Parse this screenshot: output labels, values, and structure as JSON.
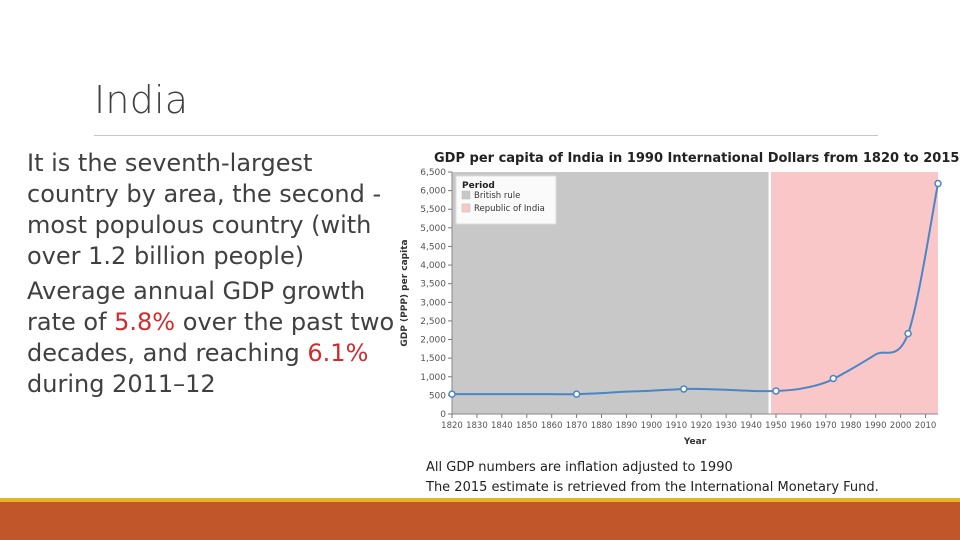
{
  "slide": {
    "title": "India",
    "para1": "It is the seventh-largest country by area, the second -most populous country (with over 1.2 billion people)",
    "para2_a": "Average annual GDP growth rate of ",
    "para2_hl1": "5.8%",
    "para2_b": " over the past two decades, and reaching ",
    "para2_hl2": "6.1%",
    "para2_c": " during 2011–12",
    "caption1": "All GDP numbers are inflation adjusted to 1990",
    "caption2": "The 2015 estimate is retrieved from the International Monetary Fund."
  },
  "colors": {
    "accent_red": "#d22b2b",
    "british": "#c8c8c8",
    "republic": "#f9c7c7",
    "line": "#4a86c6",
    "footer_thin": "#e6b32a",
    "footer_thick": "#c0562a"
  },
  "chart_data": {
    "type": "line",
    "title": "GDP per capita of India in 1990 International Dollars from 1820 to 2015",
    "xlabel": "Year",
    "ylabel": "GDP (PPP) per capita",
    "xlim": [
      1820,
      2015
    ],
    "ylim": [
      0,
      6500
    ],
    "x_ticks": [
      1820,
      1830,
      1840,
      1850,
      1860,
      1870,
      1880,
      1890,
      1900,
      1910,
      1920,
      1930,
      1940,
      1950,
      1960,
      1970,
      1980,
      1990,
      2000,
      2010
    ],
    "y_ticks": [
      0,
      500,
      1000,
      1500,
      2000,
      2500,
      3000,
      3500,
      4000,
      4500,
      5000,
      5500,
      6000,
      6500
    ],
    "y_tick_labels": [
      "0",
      "500",
      "1,000",
      "1,500",
      "2,000",
      "2,500",
      "3,000",
      "3,500",
      "4,000",
      "4,500",
      "5,000",
      "5,500",
      "6,000",
      "6,500"
    ],
    "legend": {
      "title": "Period",
      "position": "top-left",
      "entries": [
        {
          "label": "British rule",
          "color": "#c8c8c8"
        },
        {
          "label": "Republic of India",
          "color": "#f9c7c7"
        }
      ]
    },
    "regions": [
      {
        "name": "British rule",
        "from": 1820,
        "to": 1947,
        "color": "#c8c8c8"
      },
      {
        "name": "Republic of India",
        "from": 1948,
        "to": 2015,
        "color": "#f9c7c7"
      }
    ],
    "series": [
      {
        "name": "GDP per capita",
        "x": [
          1820,
          1830,
          1840,
          1850,
          1860,
          1870,
          1880,
          1890,
          1900,
          1913,
          1920,
          1930,
          1940,
          1950,
          1960,
          1970,
          1980,
          1990,
          2003,
          2015
        ],
        "y": [
          533,
          533,
          533,
          533,
          533,
          533,
          560,
          600,
          625,
          673,
          670,
          650,
          620,
          619,
          680,
          850,
          1200,
          1600,
          2160,
          6190
        ],
        "markers_at": [
          1820,
          1870,
          1913,
          1950,
          1973,
          2003,
          2015
        ]
      }
    ]
  }
}
